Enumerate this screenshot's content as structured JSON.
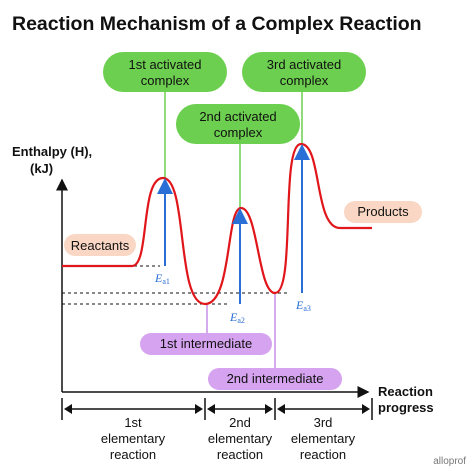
{
  "title": "Reaction Mechanism of a Complex Reaction",
  "y_axis": {
    "line1": "Enthalpy (H),",
    "line2": "(kJ)"
  },
  "x_axis": {
    "line1": "Reaction",
    "line2": "progress"
  },
  "labels": {
    "reactants": "Reactants",
    "products": "Products",
    "complex1": [
      "1st activated",
      "complex"
    ],
    "complex2": [
      "2nd activated",
      "complex"
    ],
    "complex3": [
      "3rd activated",
      "complex"
    ],
    "intermediate1": "1st intermediate",
    "intermediate2": "2nd intermediate"
  },
  "activation_energy": {
    "symbol": "E",
    "subs": [
      "a1",
      "a2",
      "a3"
    ]
  },
  "steps": [
    [
      "1st",
      "elementary",
      "reaction"
    ],
    [
      "2nd",
      "elementary",
      "reaction"
    ],
    [
      "3rd",
      "elementary",
      "reaction"
    ]
  ],
  "brand": "alloprof",
  "colors": {
    "curve": "#e0161b",
    "green": "#6ccf4f",
    "orange": "#f9d7c4",
    "purple": "#d6a3f0",
    "arrow": "#2a6fd6"
  }
}
